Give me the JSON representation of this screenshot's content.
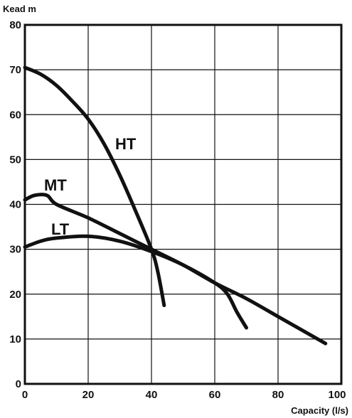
{
  "chart_data": {
    "type": "line",
    "ylabel": "Kead m",
    "xlabel": "Capacity (l/s)",
    "xlim": [
      0,
      100
    ],
    "ylim": [
      0,
      80
    ],
    "x_ticks": [
      "0",
      "20",
      "40",
      "60",
      "80",
      "100"
    ],
    "y_ticks": [
      "0",
      "10",
      "20",
      "30",
      "40",
      "50",
      "60",
      "70",
      "80"
    ],
    "grid": true,
    "legend": "none",
    "series": [
      {
        "name": "HT",
        "points": [
          [
            0,
            70.5
          ],
          [
            5,
            69
          ],
          [
            10,
            66.5
          ],
          [
            15,
            63
          ],
          [
            20,
            59
          ],
          [
            25,
            53.5
          ],
          [
            30,
            46.5
          ],
          [
            35,
            38.5
          ],
          [
            40,
            30
          ],
          [
            42,
            25
          ],
          [
            44,
            17.5
          ]
        ]
      },
      {
        "name": "MT",
        "points": [
          [
            0,
            41
          ],
          [
            3,
            42
          ],
          [
            7,
            42
          ],
          [
            10,
            40
          ],
          [
            20,
            37
          ],
          [
            30,
            33.5
          ],
          [
            40,
            30
          ],
          [
            50,
            26.5
          ],
          [
            60,
            22.5
          ],
          [
            70,
            19
          ],
          [
            80,
            15
          ],
          [
            90,
            11
          ],
          [
            95,
            9
          ]
        ]
      },
      {
        "name": "LT",
        "points": [
          [
            0,
            30.5
          ],
          [
            5,
            31.8
          ],
          [
            10,
            32.5
          ],
          [
            20,
            32.9
          ],
          [
            30,
            31.8
          ],
          [
            40,
            29.5
          ],
          [
            50,
            26.5
          ],
          [
            60,
            22.5
          ],
          [
            64,
            20
          ],
          [
            67,
            16
          ],
          [
            70,
            12.5
          ]
        ]
      }
    ]
  }
}
